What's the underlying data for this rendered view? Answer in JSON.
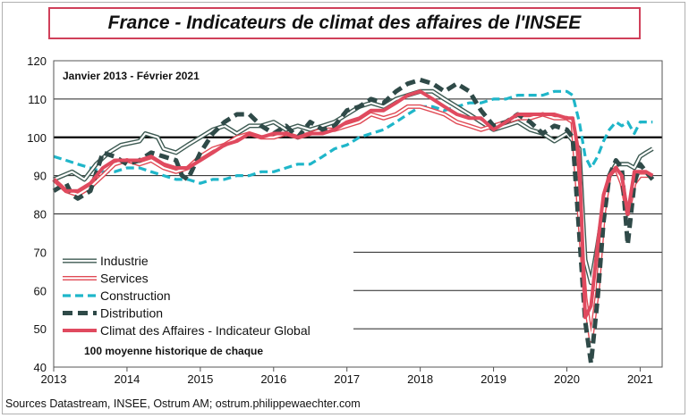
{
  "chart_data": {
    "type": "line",
    "title": "France - Indicateurs de climat des affaires de l'INSEE",
    "subtitle": "Janvier 2013 - Février 2021",
    "note": "100 moyenne historique  de chaque",
    "source": "Sources Datastream, INSEE, Ostrum AM; ostrum.philippewaechter.com",
    "ylim": [
      40,
      120
    ],
    "yticks": [
      "40",
      "50",
      "60",
      "70",
      "80",
      "90",
      "100",
      "110",
      "120"
    ],
    "xlim": [
      2013.0,
      2021.3
    ],
    "xticks": [
      "2013",
      "2014",
      "2015",
      "2016",
      "2017",
      "2018",
      "2019",
      "2020",
      "2021"
    ],
    "reference_line": 100,
    "legend_position": "lower-left",
    "series": [
      {
        "name": "Industrie",
        "color": "#3d5a52",
        "style": "double-line",
        "points": [
          [
            2013.0,
            89
          ],
          [
            2013.25,
            91
          ],
          [
            2013.42,
            89
          ],
          [
            2013.58,
            93
          ],
          [
            2013.75,
            96
          ],
          [
            2013.92,
            98
          ],
          [
            2014.17,
            99
          ],
          [
            2014.25,
            101
          ],
          [
            2014.42,
            100
          ],
          [
            2014.5,
            97
          ],
          [
            2014.67,
            96
          ],
          [
            2014.83,
            98
          ],
          [
            2015.0,
            100
          ],
          [
            2015.17,
            102
          ],
          [
            2015.33,
            103
          ],
          [
            2015.5,
            101
          ],
          [
            2015.67,
            103
          ],
          [
            2015.83,
            103
          ],
          [
            2016.0,
            104
          ],
          [
            2016.17,
            102
          ],
          [
            2016.33,
            103
          ],
          [
            2016.5,
            102
          ],
          [
            2016.67,
            103
          ],
          [
            2016.83,
            104
          ],
          [
            2017.0,
            106
          ],
          [
            2017.17,
            108
          ],
          [
            2017.33,
            109
          ],
          [
            2017.5,
            108
          ],
          [
            2017.67,
            110
          ],
          [
            2017.83,
            111
          ],
          [
            2018.0,
            112
          ],
          [
            2018.17,
            112
          ],
          [
            2018.33,
            110
          ],
          [
            2018.5,
            108
          ],
          [
            2018.67,
            106
          ],
          [
            2018.83,
            104
          ],
          [
            2019.0,
            102
          ],
          [
            2019.17,
            103
          ],
          [
            2019.33,
            104
          ],
          [
            2019.5,
            102
          ],
          [
            2019.67,
            101
          ],
          [
            2019.83,
            99
          ],
          [
            2020.0,
            101
          ],
          [
            2020.17,
            97
          ],
          [
            2020.25,
            68
          ],
          [
            2020.33,
            62
          ],
          [
            2020.42,
            72
          ],
          [
            2020.5,
            82
          ],
          [
            2020.58,
            90
          ],
          [
            2020.67,
            93
          ],
          [
            2020.83,
            93
          ],
          [
            2020.92,
            92
          ],
          [
            2021.0,
            95
          ],
          [
            2021.08,
            96
          ],
          [
            2021.17,
            97
          ]
        ]
      },
      {
        "name": "Services",
        "color": "#e04a55",
        "style": "double-line",
        "points": [
          [
            2013.0,
            89
          ],
          [
            2013.17,
            86
          ],
          [
            2013.33,
            85
          ],
          [
            2013.5,
            87
          ],
          [
            2013.67,
            90
          ],
          [
            2013.83,
            93
          ],
          [
            2014.0,
            94
          ],
          [
            2014.17,
            93
          ],
          [
            2014.33,
            94
          ],
          [
            2014.5,
            92
          ],
          [
            2014.67,
            91
          ],
          [
            2014.83,
            92
          ],
          [
            2015.0,
            95
          ],
          [
            2015.17,
            97
          ],
          [
            2015.33,
            98
          ],
          [
            2015.5,
            100
          ],
          [
            2015.67,
            101
          ],
          [
            2015.83,
            100
          ],
          [
            2016.0,
            100
          ],
          [
            2016.17,
            101
          ],
          [
            2016.33,
            100
          ],
          [
            2016.5,
            101
          ],
          [
            2016.67,
            102
          ],
          [
            2016.83,
            102
          ],
          [
            2017.0,
            103
          ],
          [
            2017.17,
            104
          ],
          [
            2017.33,
            106
          ],
          [
            2017.5,
            105
          ],
          [
            2017.67,
            106
          ],
          [
            2017.83,
            108
          ],
          [
            2018.0,
            108
          ],
          [
            2018.17,
            107
          ],
          [
            2018.33,
            106
          ],
          [
            2018.5,
            104
          ],
          [
            2018.67,
            103
          ],
          [
            2018.83,
            102
          ],
          [
            2019.0,
            103
          ],
          [
            2019.17,
            104
          ],
          [
            2019.33,
            105
          ],
          [
            2019.5,
            105
          ],
          [
            2019.67,
            106
          ],
          [
            2019.83,
            105
          ],
          [
            2020.0,
            105
          ],
          [
            2020.08,
            104
          ],
          [
            2020.25,
            58
          ],
          [
            2020.33,
            47
          ],
          [
            2020.42,
            60
          ],
          [
            2020.5,
            80
          ],
          [
            2020.58,
            90
          ],
          [
            2020.67,
            92
          ],
          [
            2020.75,
            88
          ],
          [
            2020.83,
            80
          ],
          [
            2020.92,
            88
          ],
          [
            2021.0,
            90
          ],
          [
            2021.08,
            90
          ],
          [
            2021.17,
            90
          ]
        ]
      },
      {
        "name": "Construction",
        "color": "#1fb6c9",
        "style": "dashed",
        "points": [
          [
            2013.0,
            95
          ],
          [
            2013.17,
            94
          ],
          [
            2013.33,
            93
          ],
          [
            2013.5,
            92
          ],
          [
            2013.67,
            91
          ],
          [
            2013.83,
            91
          ],
          [
            2014.0,
            92
          ],
          [
            2014.17,
            92
          ],
          [
            2014.33,
            91
          ],
          [
            2014.5,
            90
          ],
          [
            2014.67,
            89
          ],
          [
            2014.83,
            89
          ],
          [
            2015.0,
            88
          ],
          [
            2015.17,
            89
          ],
          [
            2015.33,
            89
          ],
          [
            2015.5,
            90
          ],
          [
            2015.67,
            90
          ],
          [
            2015.83,
            91
          ],
          [
            2016.0,
            91
          ],
          [
            2016.17,
            92
          ],
          [
            2016.33,
            93
          ],
          [
            2016.5,
            93
          ],
          [
            2016.67,
            95
          ],
          [
            2016.83,
            97
          ],
          [
            2017.0,
            98
          ],
          [
            2017.17,
            100
          ],
          [
            2017.33,
            101
          ],
          [
            2017.5,
            102
          ],
          [
            2017.67,
            104
          ],
          [
            2017.83,
            106
          ],
          [
            2018.0,
            108
          ],
          [
            2018.17,
            108
          ],
          [
            2018.33,
            107
          ],
          [
            2018.5,
            108
          ],
          [
            2018.67,
            109
          ],
          [
            2018.83,
            109
          ],
          [
            2019.0,
            110
          ],
          [
            2019.17,
            110
          ],
          [
            2019.33,
            111
          ],
          [
            2019.5,
            111
          ],
          [
            2019.67,
            111
          ],
          [
            2019.83,
            112
          ],
          [
            2020.0,
            112
          ],
          [
            2020.08,
            111
          ],
          [
            2020.17,
            104
          ],
          [
            2020.25,
            95
          ],
          [
            2020.33,
            92
          ],
          [
            2020.42,
            95
          ],
          [
            2020.5,
            99
          ],
          [
            2020.58,
            102
          ],
          [
            2020.67,
            104
          ],
          [
            2020.75,
            103
          ],
          [
            2020.83,
            104
          ],
          [
            2020.92,
            101
          ],
          [
            2021.0,
            104
          ],
          [
            2021.08,
            104
          ],
          [
            2021.17,
            104
          ]
        ]
      },
      {
        "name": "Distribution",
        "color": "#2f4a48",
        "style": "dashed",
        "points": [
          [
            2013.0,
            86
          ],
          [
            2013.17,
            88
          ],
          [
            2013.25,
            85
          ],
          [
            2013.33,
            84
          ],
          [
            2013.5,
            86
          ],
          [
            2013.67,
            96
          ],
          [
            2013.83,
            95
          ],
          [
            2014.0,
            93
          ],
          [
            2014.17,
            94
          ],
          [
            2014.33,
            96
          ],
          [
            2014.5,
            95
          ],
          [
            2014.67,
            94
          ],
          [
            2014.75,
            90
          ],
          [
            2014.83,
            89
          ],
          [
            2015.0,
            96
          ],
          [
            2015.17,
            101
          ],
          [
            2015.33,
            104
          ],
          [
            2015.5,
            106
          ],
          [
            2015.67,
            106
          ],
          [
            2015.83,
            103
          ],
          [
            2016.0,
            101
          ],
          [
            2016.17,
            103
          ],
          [
            2016.33,
            100
          ],
          [
            2016.5,
            104
          ],
          [
            2016.67,
            102
          ],
          [
            2016.83,
            103
          ],
          [
            2017.0,
            107
          ],
          [
            2017.17,
            108
          ],
          [
            2017.33,
            110
          ],
          [
            2017.5,
            109
          ],
          [
            2017.67,
            112
          ],
          [
            2017.83,
            114
          ],
          [
            2018.0,
            115
          ],
          [
            2018.17,
            114
          ],
          [
            2018.33,
            112
          ],
          [
            2018.5,
            114
          ],
          [
            2018.67,
            112
          ],
          [
            2018.83,
            107
          ],
          [
            2019.0,
            103
          ],
          [
            2019.17,
            104
          ],
          [
            2019.33,
            106
          ],
          [
            2019.5,
            104
          ],
          [
            2019.67,
            101
          ],
          [
            2019.83,
            103
          ],
          [
            2020.0,
            102
          ],
          [
            2020.08,
            100
          ],
          [
            2020.25,
            52
          ],
          [
            2020.33,
            41
          ],
          [
            2020.42,
            58
          ],
          [
            2020.5,
            78
          ],
          [
            2020.58,
            90
          ],
          [
            2020.67,
            94
          ],
          [
            2020.75,
            92
          ],
          [
            2020.83,
            72
          ],
          [
            2020.92,
            88
          ],
          [
            2021.0,
            93
          ],
          [
            2021.08,
            91
          ],
          [
            2021.17,
            89
          ]
        ]
      },
      {
        "name": "Climat des Affaires - Indicateur Global",
        "color": "#e04a5f",
        "style": "solid-thick",
        "points": [
          [
            2013.0,
            89
          ],
          [
            2013.17,
            86
          ],
          [
            2013.33,
            86
          ],
          [
            2013.5,
            88
          ],
          [
            2013.67,
            92
          ],
          [
            2013.83,
            94
          ],
          [
            2014.0,
            94
          ],
          [
            2014.17,
            94
          ],
          [
            2014.33,
            95
          ],
          [
            2014.5,
            93
          ],
          [
            2014.67,
            92
          ],
          [
            2014.83,
            92
          ],
          [
            2015.0,
            94
          ],
          [
            2015.17,
            96
          ],
          [
            2015.33,
            98
          ],
          [
            2015.5,
            99
          ],
          [
            2015.67,
            101
          ],
          [
            2015.83,
            100
          ],
          [
            2016.0,
            101
          ],
          [
            2016.17,
            101
          ],
          [
            2016.33,
            100
          ],
          [
            2016.5,
            101
          ],
          [
            2016.67,
            101
          ],
          [
            2016.83,
            102
          ],
          [
            2017.0,
            104
          ],
          [
            2017.17,
            105
          ],
          [
            2017.33,
            107
          ],
          [
            2017.5,
            107
          ],
          [
            2017.67,
            109
          ],
          [
            2017.83,
            111
          ],
          [
            2018.0,
            112
          ],
          [
            2018.17,
            110
          ],
          [
            2018.33,
            108
          ],
          [
            2018.5,
            106
          ],
          [
            2018.67,
            105
          ],
          [
            2018.83,
            105
          ],
          [
            2019.0,
            102
          ],
          [
            2019.17,
            104
          ],
          [
            2019.33,
            106
          ],
          [
            2019.5,
            106
          ],
          [
            2019.67,
            106
          ],
          [
            2019.83,
            106
          ],
          [
            2020.0,
            105
          ],
          [
            2020.08,
            105
          ],
          [
            2020.17,
            95
          ],
          [
            2020.25,
            53
          ],
          [
            2020.33,
            56
          ],
          [
            2020.42,
            72
          ],
          [
            2020.5,
            85
          ],
          [
            2020.58,
            90
          ],
          [
            2020.67,
            92
          ],
          [
            2020.75,
            90
          ],
          [
            2020.83,
            80
          ],
          [
            2020.92,
            91
          ],
          [
            2021.0,
            91
          ],
          [
            2021.08,
            91
          ],
          [
            2021.17,
            90
          ]
        ]
      }
    ]
  }
}
